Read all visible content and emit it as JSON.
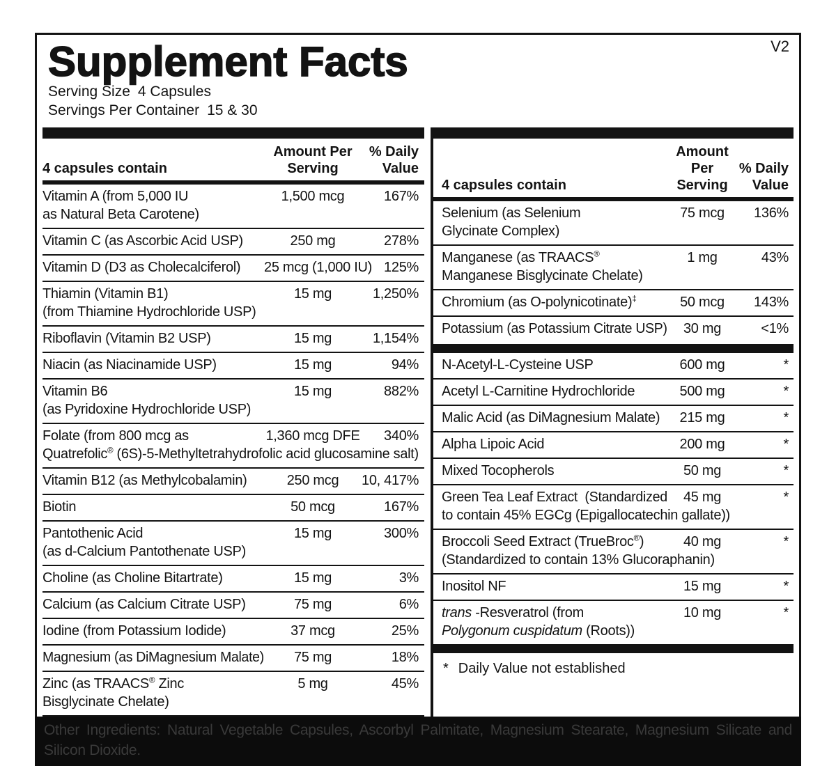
{
  "meta": {
    "version": "V2"
  },
  "header": {
    "title": "Supplement Facts",
    "serving_size_label": "Serving Size",
    "serving_size_value": "4 Capsules",
    "servings_per_container_label": "Servings Per Container",
    "servings_per_container_value": "15 & 30"
  },
  "table": {
    "column_header": {
      "contain": "4 capsules contain",
      "amount": "Amount Per\nServing",
      "dv": "% Daily\nValue"
    },
    "left_rows": [
      {
        "line1": "Vitamin A (from 5,000 IU",
        "line2": "as Natural Beta Carotene)",
        "amount": "1,500 mcg",
        "dv": "167%"
      },
      {
        "line1": "Vitamin C (as Ascorbic Acid USP)",
        "amount": "250 mg",
        "dv": "278%"
      },
      {
        "line1": "Vitamin D (D3 as Cholecalciferol)",
        "amount": "25 mcg (1,000 IU)",
        "dv": "125%"
      },
      {
        "line1": "Thiamin (Vitamin B1)",
        "line2": "(from Thiamine Hydrochloride USP)",
        "amount": "15 mg",
        "dv": "1,250%"
      },
      {
        "line1": "Riboflavin (Vitamin B2 USP)",
        "amount": "15 mg",
        "dv": "1,154%"
      },
      {
        "line1": "Niacin (as Niacinamide USP)",
        "amount": "15 mg",
        "dv": "94%"
      },
      {
        "line1": "Vitamin B6",
        "line2": "(as Pyridoxine Hydrochloride USP)",
        "amount": "15 mg",
        "dv": "882%"
      },
      {
        "line1": "Folate (from 800 mcg as",
        "line2": "Quatrefolic^®^ (6S)-5-Methyltetrahydrofolic acid glucosamine salt)",
        "amount": "1,360 mcg DFE",
        "dv": "340%"
      },
      {
        "line1": "Vitamin B12 (as Methylcobalamin)",
        "amount": "250 mcg",
        "dv": "10, 417%"
      },
      {
        "line1": "Biotin",
        "amount": "50 mcg",
        "dv": "167%"
      },
      {
        "line1": "Pantothenic Acid",
        "line2": "(as d-Calcium Pantothenate USP)",
        "amount": "15 mg",
        "dv": "300%"
      },
      {
        "line1": "Choline (as Choline Bitartrate)",
        "amount": "15 mg",
        "dv": "3%"
      },
      {
        "line1": "Calcium (as Calcium Citrate USP)",
        "amount": "75 mg",
        "dv": "6%"
      },
      {
        "line1": "Iodine (from Potassium Iodide)",
        "amount": "37 mcg",
        "dv": "25%"
      },
      {
        "line1": "Magnesium (as DiMagnesium Malate)",
        "amount": "75 mg",
        "dv": "18%"
      },
      {
        "line1": "Zinc (as TRAACS^®^ Zinc",
        "line2": "Bisglycinate Chelate)",
        "amount": "5 mg",
        "dv": "45%"
      }
    ],
    "right_rows_dv": [
      {
        "line1": "Selenium (as Selenium",
        "line2": "Glycinate Complex)",
        "amount": "75 mcg",
        "dv": "136%"
      },
      {
        "line1": "Manganese (as TRAACS^®^",
        "line2": "Manganese Bisglycinate Chelate)",
        "amount": "1 mg",
        "dv": "43%"
      },
      {
        "line1": "Chromium (as O-polynicotinate)^‡^",
        "amount": "50 mcg",
        "dv": "143%"
      },
      {
        "line1": "Potassium (as Potassium Citrate USP)",
        "amount": "30 mg",
        "dv": "<1%"
      }
    ],
    "right_rows_nodv": [
      {
        "line1": "N-Acetyl-L-Cysteine USP",
        "amount": "600 mg",
        "dv": "*"
      },
      {
        "line1": "Acetyl L-Carnitine Hydrochloride",
        "amount": "500 mg",
        "dv": "*"
      },
      {
        "line1": "Malic Acid (as DiMagnesium Malate)",
        "amount": "215 mg",
        "dv": "*"
      },
      {
        "line1": "Alpha Lipoic Acid",
        "amount": "200 mg",
        "dv": "*"
      },
      {
        "line1": "Mixed Tocopherols",
        "amount": "50 mg",
        "dv": "*"
      },
      {
        "line1": "Green Tea Leaf Extract  (Standardized",
        "line2": "to contain 45% EGCg (Epigallocatechin gallate))",
        "amount": "45 mg",
        "dv": "*"
      },
      {
        "line1": "Broccoli Seed Extract (TrueBroc^®^)",
        "line2": "(Standardized to contain 13% Glucoraphanin)",
        "amount": "40 mg",
        "dv": "*"
      },
      {
        "line1": "Inositol NF",
        "amount": "15 mg",
        "dv": "*"
      },
      {
        "line1": "_trans_ -Resveratrol (from",
        "line2": "_Polygonum cuspidatum_ (Roots))",
        "amount": "10 mg",
        "dv": "*"
      }
    ],
    "footnote": {
      "marker": "*",
      "text": "Daily Value not established"
    }
  },
  "other_ingredients": "Other Ingredients: Natural Vegetable Capsules, Ascorbyl Palmitate, Magnesium Stearate, Magnesium Silicate and Silicon Dioxide.",
  "colors": {
    "ink": "#131313",
    "band_background": "#0c0c0c",
    "band_text": "#3a3a3a"
  }
}
